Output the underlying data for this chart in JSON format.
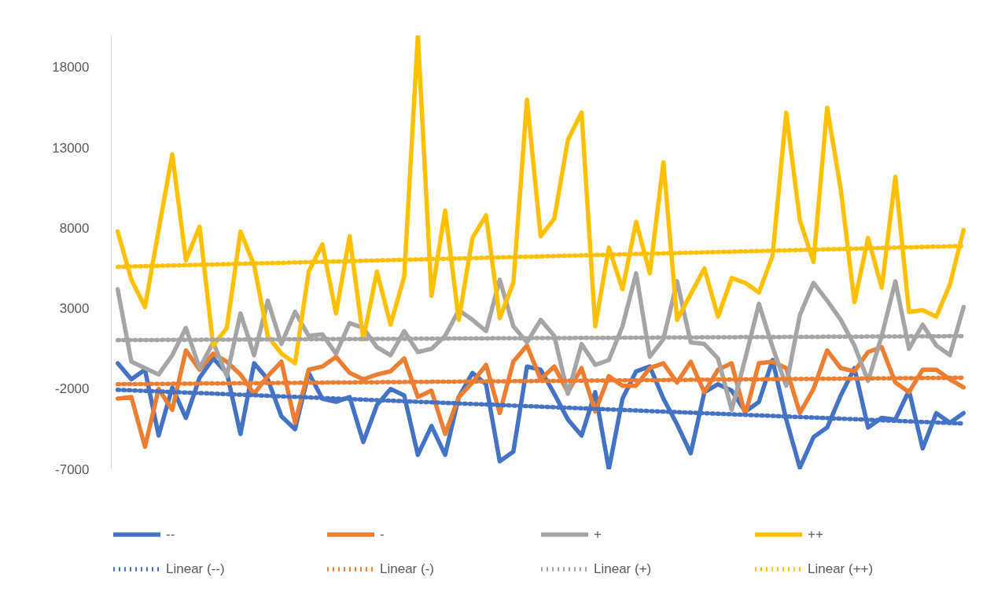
{
  "chart_data": {
    "type": "line",
    "categories": [
      null,
      null,
      null,
      null,
      null,
      null,
      null,
      null,
      null,
      null,
      null,
      null,
      null,
      null,
      null,
      null,
      null,
      null,
      null,
      null,
      null,
      null,
      null,
      null,
      null,
      null,
      null,
      null,
      null,
      null,
      null,
      null,
      null,
      null,
      null,
      null,
      null,
      null,
      null,
      null,
      null,
      null,
      null,
      null,
      null,
      null,
      null,
      null,
      null,
      null,
      null,
      null,
      null,
      null,
      null,
      null,
      null,
      null,
      null,
      null,
      null,
      null,
      null
    ],
    "ylim": [
      -7000,
      20000
    ],
    "yticks": [
      -7000,
      -2000,
      3000,
      8000,
      13000,
      18000
    ],
    "legend": "bottom",
    "series": [
      {
        "name": "--",
        "color": "#4472c4",
        "values": [
          -400,
          -1400,
          -800,
          -4900,
          -1900,
          -3800,
          -1300,
          -100,
          -1000,
          -4800,
          -400,
          -1400,
          -3700,
          -4500,
          -1000,
          -2600,
          -2800,
          -2500,
          -5300,
          -3000,
          -2000,
          -2400,
          -6100,
          -4300,
          -6100,
          -2500,
          -1000,
          -1700,
          -6500,
          -5900,
          -600,
          -800,
          -2300,
          -3900,
          -4900,
          -2200,
          -7000,
          -2600,
          -900,
          -600,
          -2600,
          -4200,
          -6000,
          -2200,
          -1700,
          -2100,
          -3400,
          -2800,
          -200,
          -3900,
          -6900,
          -5000,
          -4400,
          -2400,
          -700,
          -4400,
          -3800,
          -3900,
          -2100,
          -5700,
          -3500,
          -4100,
          -3500
        ]
      },
      {
        "name": "-",
        "color": "#ed7d31",
        "values": [
          -2600,
          -2500,
          -5600,
          -2000,
          -3300,
          400,
          -800,
          200,
          -300,
          -1100,
          -2300,
          -1200,
          -300,
          -4100,
          -800,
          -600,
          0,
          -1000,
          -1400,
          -1100,
          -900,
          -100,
          -2500,
          -2100,
          -4800,
          -2500,
          -1600,
          -500,
          -3500,
          -300,
          700,
          -1400,
          -600,
          -2200,
          -700,
          -3400,
          -1200,
          -1800,
          -1800,
          -700,
          -400,
          -1600,
          -300,
          -2200,
          -800,
          -400,
          -3600,
          -400,
          -300,
          -700,
          -3500,
          -2000,
          400,
          -700,
          -900,
          300,
          600,
          -1600,
          -2200,
          -800,
          -800,
          -1400,
          -1900
        ]
      },
      {
        "name": "+",
        "color": "#a5a5a5",
        "values": [
          4200,
          -300,
          -700,
          -1100,
          100,
          1800,
          -700,
          900,
          -1200,
          2700,
          100,
          3500,
          800,
          2800,
          1300,
          1400,
          200,
          2100,
          1800,
          600,
          100,
          1600,
          300,
          500,
          1300,
          2900,
          2300,
          1600,
          4800,
          1900,
          900,
          2300,
          1300,
          -2300,
          800,
          -500,
          -200,
          1900,
          5200,
          0,
          1100,
          4700,
          900,
          800,
          -100,
          -3300,
          -100,
          3300,
          600,
          -1800,
          2600,
          4600,
          3500,
          2300,
          700,
          -1500,
          1300,
          4700,
          500,
          2000,
          700,
          100,
          3100
        ]
      },
      {
        "name": "++",
        "color": "#ffc000",
        "values": [
          7800,
          4800,
          3100,
          7900,
          12600,
          6000,
          8100,
          700,
          1800,
          7800,
          5700,
          1300,
          200,
          -400,
          5300,
          7000,
          2700,
          7500,
          1100,
          5300,
          2000,
          5000,
          20000,
          3800,
          9100,
          2300,
          7400,
          8800,
          2400,
          4600,
          16000,
          7500,
          8600,
          13500,
          15200,
          1900,
          6800,
          4200,
          8400,
          5200,
          12100,
          2300,
          3900,
          5500,
          2500,
          4900,
          4600,
          4000,
          6300,
          15200,
          8500,
          5900,
          15500,
          10400,
          3400,
          7400,
          4300,
          11200,
          2800,
          2900,
          2500,
          4500,
          7900
        ]
      },
      {
        "name": "Linear (--)",
        "color": "#4472c4",
        "type": "line",
        "line_style": "dotted",
        "values": [
          -2050,
          null,
          null,
          null,
          null,
          null,
          null,
          null,
          null,
          null,
          null,
          null,
          null,
          null,
          null,
          null,
          null,
          null,
          null,
          null,
          null,
          null,
          null,
          null,
          null,
          null,
          null,
          null,
          null,
          null,
          null,
          null,
          null,
          null,
          null,
          null,
          null,
          null,
          null,
          null,
          null,
          null,
          null,
          null,
          null,
          null,
          null,
          null,
          null,
          null,
          null,
          null,
          null,
          null,
          null,
          null,
          null,
          null,
          null,
          null,
          null,
          null,
          -4150
        ]
      },
      {
        "name": "Linear (-)",
        "color": "#ed7d31",
        "type": "line",
        "line_style": "dotted",
        "values": [
          -1700,
          null,
          null,
          null,
          null,
          null,
          null,
          null,
          null,
          null,
          null,
          null,
          null,
          null,
          null,
          null,
          null,
          null,
          null,
          null,
          null,
          null,
          null,
          null,
          null,
          null,
          null,
          null,
          null,
          null,
          null,
          null,
          null,
          null,
          null,
          null,
          null,
          null,
          null,
          null,
          null,
          null,
          null,
          null,
          null,
          null,
          null,
          null,
          null,
          null,
          null,
          null,
          null,
          null,
          null,
          null,
          null,
          null,
          null,
          null,
          null,
          null,
          -1300
        ]
      },
      {
        "name": "Linear (+)",
        "color": "#a5a5a5",
        "type": "line",
        "line_style": "dotted",
        "values": [
          1040,
          null,
          null,
          null,
          null,
          null,
          null,
          null,
          null,
          null,
          null,
          null,
          null,
          null,
          null,
          null,
          null,
          null,
          null,
          null,
          null,
          null,
          null,
          null,
          null,
          null,
          null,
          null,
          null,
          null,
          null,
          null,
          null,
          null,
          null,
          null,
          null,
          null,
          null,
          null,
          null,
          null,
          null,
          null,
          null,
          null,
          null,
          null,
          null,
          null,
          null,
          null,
          null,
          null,
          null,
          null,
          null,
          null,
          null,
          null,
          null,
          null,
          1290
        ]
      },
      {
        "name": "Linear (++)",
        "color": "#ffc000",
        "type": "line",
        "line_style": "dotted",
        "values": [
          5600,
          null,
          null,
          null,
          null,
          null,
          null,
          null,
          null,
          null,
          null,
          null,
          null,
          null,
          null,
          null,
          null,
          null,
          null,
          null,
          null,
          null,
          null,
          null,
          null,
          null,
          null,
          null,
          null,
          null,
          null,
          null,
          null,
          null,
          null,
          null,
          null,
          null,
          null,
          null,
          null,
          null,
          null,
          null,
          null,
          null,
          null,
          null,
          null,
          null,
          null,
          null,
          null,
          null,
          null,
          null,
          null,
          null,
          null,
          null,
          null,
          null,
          6900
        ]
      }
    ]
  }
}
